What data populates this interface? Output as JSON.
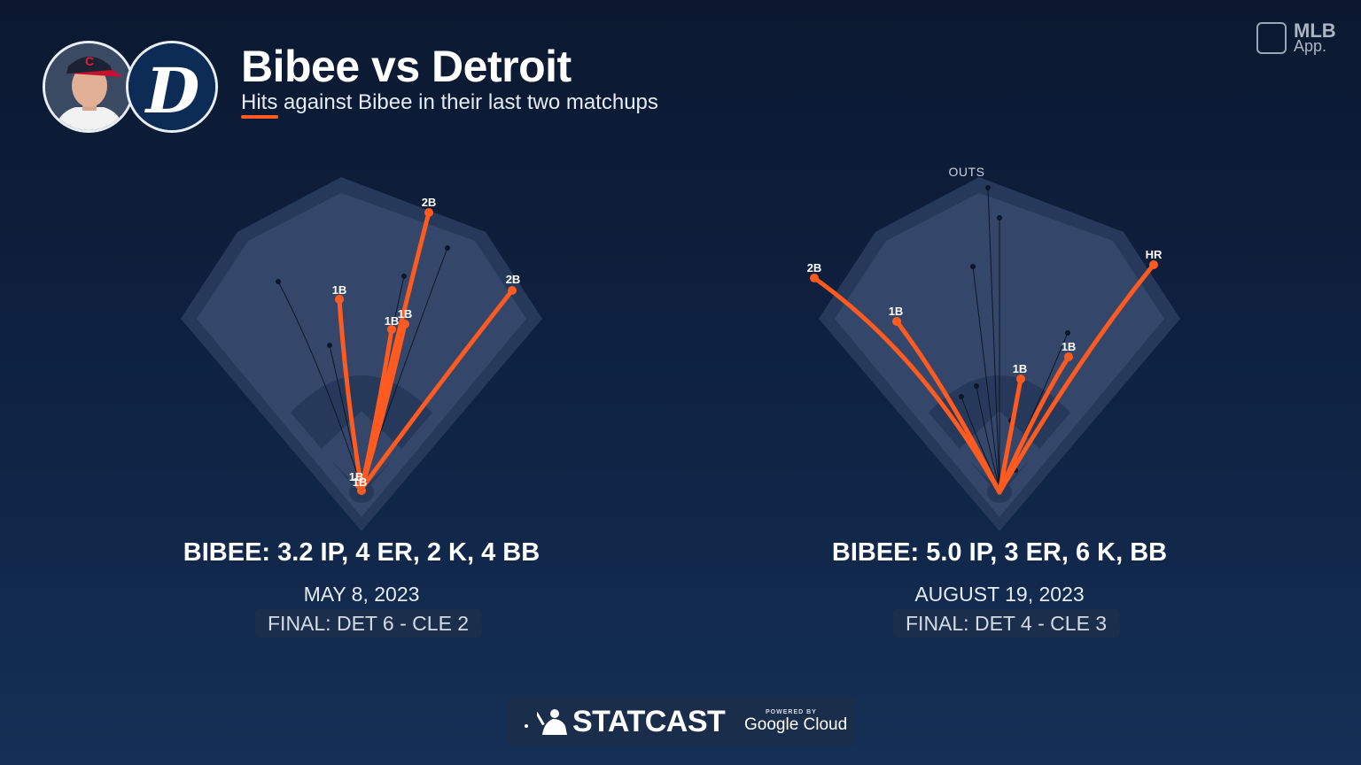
{
  "header": {
    "title": "Bibee vs Detroit",
    "subtitle": "Hits against Bibee in their last two matchups",
    "player_avatar_icon": "player-headshot-icon",
    "team_logo_icon": "detroit-tigers-logo-icon"
  },
  "app_badge": {
    "line1": "MLB",
    "line2": "App."
  },
  "colors": {
    "accent": "#ff5a1f",
    "background": "#0f2344",
    "field": "#34476a",
    "field_ring": "#26395a"
  },
  "games": [
    {
      "stats": "BIBEE: 3.2 IP, 4 ER, 2 K, 4 BB",
      "date": "MAY 8, 2023",
      "final": "FINAL: DET 6 - CLE 2",
      "outs_label": "",
      "hits": [
        {
          "label": "2B"
        },
        {
          "label": "2B"
        },
        {
          "label": "1B"
        },
        {
          "label": "1B"
        },
        {
          "label": "1B"
        },
        {
          "label": "1B"
        },
        {
          "label": "1B"
        }
      ]
    },
    {
      "stats": "BIBEE: 5.0 IP, 3 ER, 6 K, BB",
      "date": "AUGUST 19, 2023",
      "final": "FINAL: DET 4 - CLE 3",
      "outs_label": "OUTS",
      "hits": [
        {
          "label": "2B"
        },
        {
          "label": "1B"
        },
        {
          "label": "1B"
        },
        {
          "label": "1B"
        },
        {
          "label": "HR"
        }
      ]
    }
  ],
  "footer": {
    "brand": "STATCAST",
    "powered_by": "POWERED BY",
    "partner": "Google Cloud"
  }
}
